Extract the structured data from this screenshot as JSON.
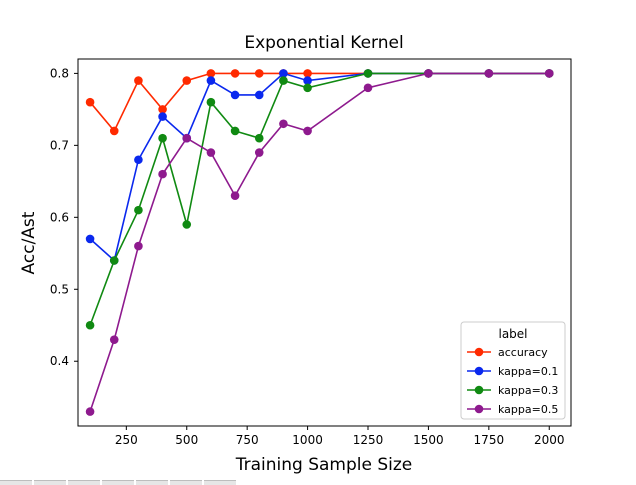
{
  "chart_data": {
    "type": "line",
    "title": "Exponential Kernel",
    "xlabel": "Training Sample Size",
    "ylabel": "Acc/Ast",
    "xlim": [
      50,
      2090
    ],
    "ylim": [
      0.31,
      0.82
    ],
    "xticks": [
      250,
      500,
      750,
      1000,
      1250,
      1500,
      1750,
      2000
    ],
    "yticks": [
      0.4,
      0.5,
      0.6,
      0.7,
      0.8
    ],
    "xtick_labels": [
      "250",
      "500",
      "750",
      "1000",
      "1250",
      "1500",
      "1750",
      "2000"
    ],
    "ytick_labels": [
      "0.4",
      "0.5",
      "0.6",
      "0.7",
      "0.8"
    ],
    "legend_title": "label",
    "legend_position": "lower-right",
    "series": [
      {
        "name": "accuracy",
        "color": "#ff2a00",
        "x": [
          100,
          200,
          300,
          400,
          500,
          600,
          700,
          800,
          900,
          1000,
          1250,
          1500,
          1750,
          2000
        ],
        "y": [
          0.76,
          0.72,
          0.79,
          0.75,
          0.79,
          0.8,
          0.8,
          0.8,
          0.8,
          0.8,
          0.8,
          0.8,
          0.8,
          0.8
        ]
      },
      {
        "name": "kappa=0.1",
        "color": "#0a28ee",
        "x": [
          100,
          200,
          300,
          400,
          500,
          600,
          700,
          800,
          900,
          1000,
          1250,
          1500,
          1750,
          2000
        ],
        "y": [
          0.57,
          0.54,
          0.68,
          0.74,
          0.71,
          0.79,
          0.77,
          0.77,
          0.8,
          0.79,
          0.8,
          0.8,
          0.8,
          0.8
        ]
      },
      {
        "name": "kappa=0.3",
        "color": "#108a12",
        "x": [
          100,
          200,
          300,
          400,
          500,
          600,
          700,
          800,
          900,
          1000,
          1250,
          1500,
          1750,
          2000
        ],
        "y": [
          0.45,
          0.54,
          0.61,
          0.71,
          0.59,
          0.76,
          0.72,
          0.71,
          0.79,
          0.78,
          0.8,
          0.8,
          0.8,
          0.8
        ]
      },
      {
        "name": "kappa=0.5",
        "color": "#8e1a8e",
        "x": [
          100,
          200,
          300,
          400,
          500,
          600,
          700,
          800,
          900,
          1000,
          1250,
          1500,
          1750,
          2000
        ],
        "y": [
          0.33,
          0.43,
          0.56,
          0.66,
          0.71,
          0.69,
          0.63,
          0.69,
          0.73,
          0.72,
          0.78,
          0.8,
          0.8,
          0.8
        ]
      }
    ]
  }
}
